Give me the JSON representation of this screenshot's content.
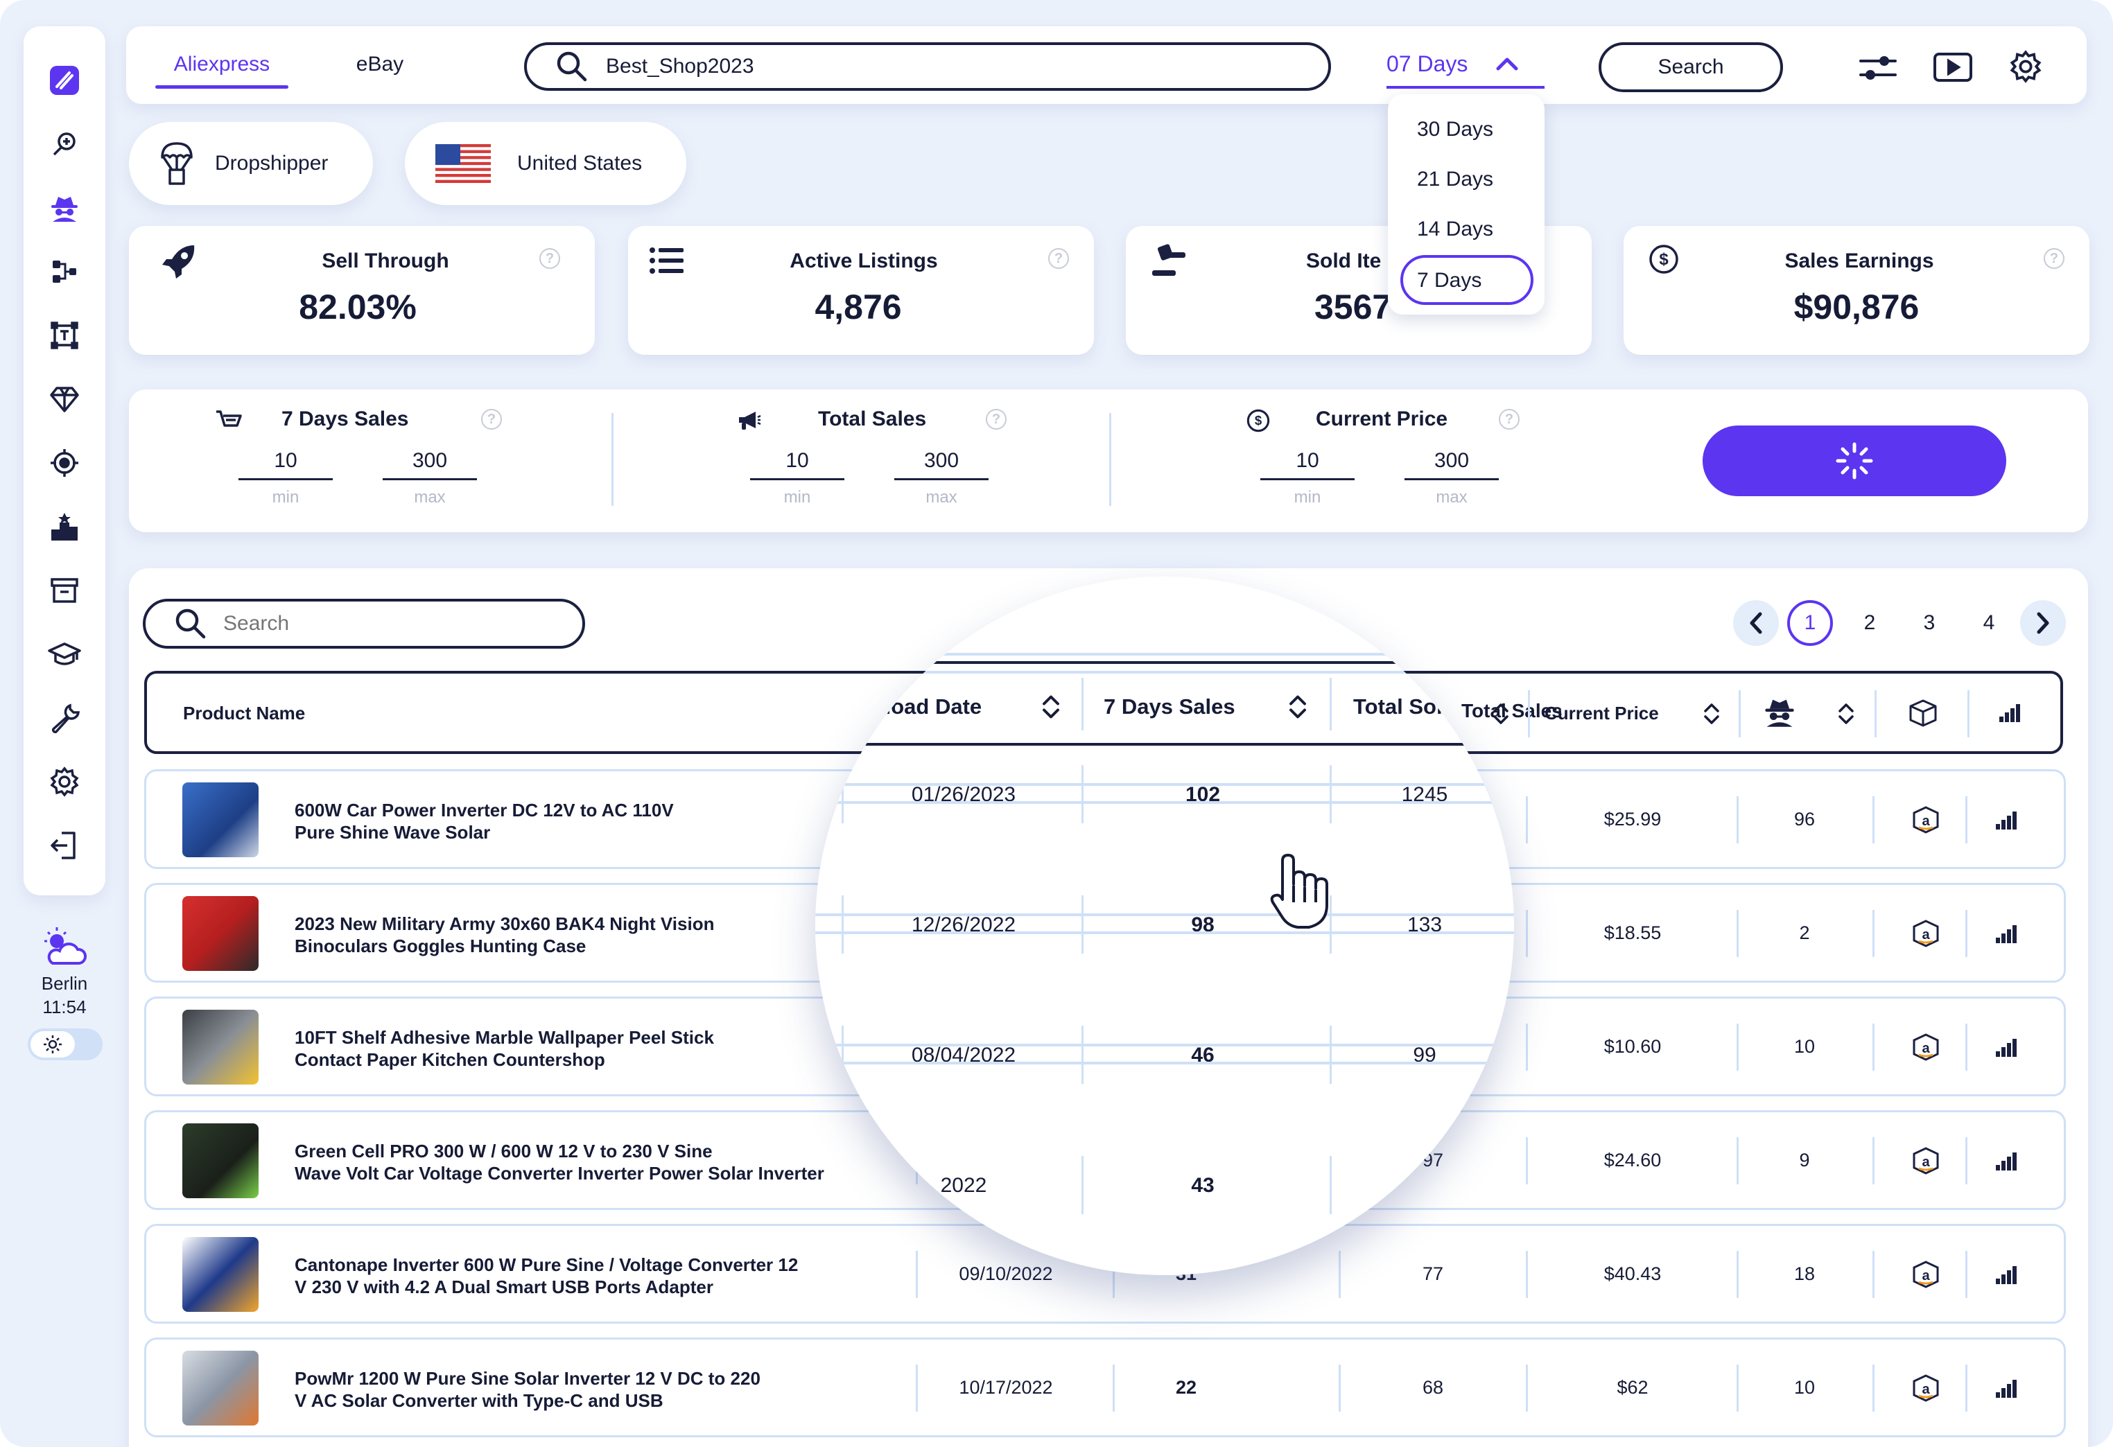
{
  "marketplace_tabs": [
    {
      "label": "Aliexpress",
      "active": true
    },
    {
      "label": "eBay",
      "active": false
    }
  ],
  "store_search": {
    "value": "Best_Shop2023"
  },
  "period": {
    "selected": "07 Days",
    "options": [
      "30 Days",
      "21 Days",
      "14 Days",
      "7 Days"
    ]
  },
  "search_button": "Search",
  "chips": {
    "role": "Dropshipper",
    "country": "United States"
  },
  "stats": [
    {
      "label": "Sell Through",
      "value": "82.03%",
      "icon": "rocket-icon"
    },
    {
      "label": "Active Listings",
      "value": "4,876",
      "icon": "list-icon"
    },
    {
      "label": "Sold Ite",
      "value": "3567",
      "icon": "gavel-icon"
    },
    {
      "label": "Sales Earnings",
      "value": "$90,876",
      "icon": "dollar-icon"
    }
  ],
  "filters": [
    {
      "label": "7 Days Sales",
      "min": "10",
      "max": "300"
    },
    {
      "label": "Total Sales",
      "min": "10",
      "max": "300"
    },
    {
      "label": "Current Price",
      "min": "10",
      "max": "300"
    }
  ],
  "filter_labels": {
    "min": "min",
    "max": "max"
  },
  "hint": "?",
  "table_search": {
    "placeholder": "Search"
  },
  "pagination": {
    "pages": [
      "1",
      "2",
      "3",
      "4"
    ],
    "current": "1"
  },
  "columns": {
    "product": "Product Name",
    "upload": "Upload Date",
    "upload_visible": "ıload Date",
    "sales7": "7 Days Sales",
    "total": "Total Sales",
    "total_visible": "Total Soı",
    "price": "Current Price"
  },
  "rows": [
    {
      "name1": "600W Car Power Inverter DC 12V to AC 110V",
      "name2": "Pure Shine Wave Solar",
      "date": "01/26/2023",
      "sales7": "102",
      "total": "1245",
      "price": "$25.99",
      "competitors": "96"
    },
    {
      "name1": "2023 New Military Army 30x60 BAK4 Night Vision",
      "name2": "Binoculars Goggles Hunting Case",
      "date": "12/26/2022",
      "sales7": "98",
      "total": "133",
      "price": "$18.55",
      "competitors": "2"
    },
    {
      "name1": "10FT Shelf Adhesive Marble Wallpaper Peel Stick",
      "name2": "Contact Paper Kitchen Countershop",
      "date": "08/04/2022",
      "sales7": "46",
      "total": "99",
      "price": "$10.60",
      "competitors": "10"
    },
    {
      "name1": "Green Cell PRO 300 W / 600 W 12 V to 230 V Sine",
      "name2": "Wave Volt Car Voltage Converter Inverter Power Solar Inverter",
      "date": "2022",
      "sales7": "43",
      "total": "97",
      "price": "$24.60",
      "competitors": "9"
    },
    {
      "name1": "Cantonape Inverter 600 W Pure Sine / Voltage Converter 12",
      "name2": "V 230 V with 4.2 A Dual Smart USB Ports Adapter",
      "date": "09/10/2022",
      "sales7": "31",
      "total": "77",
      "price": "$40.43",
      "competitors": "18"
    },
    {
      "name1": "PowMr 1200 W Pure Sine Solar Inverter 12 V DC to 220",
      "name2": "V AC Solar Converter with Type-C and USB",
      "date": "10/17/2022",
      "sales7": "22",
      "total": "68",
      "price": "$62",
      "competitors": "10"
    }
  ],
  "magnified": {
    "date_partial": "2022"
  },
  "weather": {
    "city": "Berlin",
    "time": "11:54"
  },
  "colors": {
    "accent": "#5b35f0",
    "ink": "#161b36",
    "row_border": "#cfe0f7"
  }
}
